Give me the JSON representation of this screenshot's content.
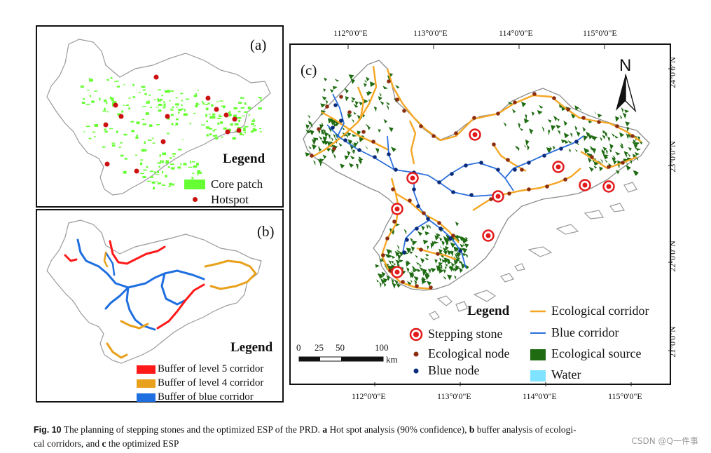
{
  "panel_a": {
    "label": "(a)",
    "legend_title": "Legend",
    "legend": [
      {
        "label": "Core patch",
        "color": "#66ff33"
      },
      {
        "label": "Hotspot",
        "color": "#cc1111"
      }
    ]
  },
  "panel_b": {
    "label": "(b)",
    "legend_title": "Legend",
    "legend": [
      {
        "label": "Buffer of level 5 corridor",
        "color": "#ff1a1a"
      },
      {
        "label": "Buffer of level 4 corridor",
        "color": "#e8a11c"
      },
      {
        "label": "Buffer of blue corridor",
        "color": "#1f6fe0"
      }
    ]
  },
  "panel_c": {
    "label": "(c)",
    "north": "N",
    "legend_title": "Legend",
    "legend_left": [
      {
        "label": "Stepping stone",
        "color": "#e31a1c"
      },
      {
        "label": "Ecological node",
        "color": "#8b2d0e"
      },
      {
        "label": "Blue node",
        "color": "#0b2c7a"
      }
    ],
    "legend_right": [
      {
        "label": "Ecological corridor",
        "color": "#f5a623"
      },
      {
        "label": "Blue corridor",
        "color": "#2a6fdb"
      },
      {
        "label": "Ecological source",
        "color": "#1e6b12"
      },
      {
        "label": "Water",
        "color": "#7fe3ff"
      }
    ],
    "scale": {
      "ticks": [
        "0",
        "25",
        "50",
        "100"
      ],
      "unit": "km"
    },
    "top_coords": [
      "112°0'0\"E",
      "113°0'0\"E",
      "114°0'0\"E",
      "115°0'0\"E"
    ],
    "bottom_coords": [
      "112°0'0\"E",
      "113°0'0\"E",
      "114°0'0\"E",
      "115°0'0\"E"
    ],
    "right_coords": [
      "24°0'0\"N",
      "23°0'0\"N",
      "22°0'0\"N",
      "21°0'0\"N"
    ]
  },
  "caption": {
    "fig_label": "Fig. 10",
    "text_1": " The planning of stepping stones and the optimized ESP of the PRD. ",
    "a": "a",
    "text_2": " Hot spot analysis (90% confidence), ",
    "b": "b",
    "text_3": " buffer analysis of ecologi-",
    "text_4": "cal corridors, and ",
    "c": "c",
    "text_5": " the optimized ESP"
  },
  "watermark": "CSDN @Q一件事"
}
